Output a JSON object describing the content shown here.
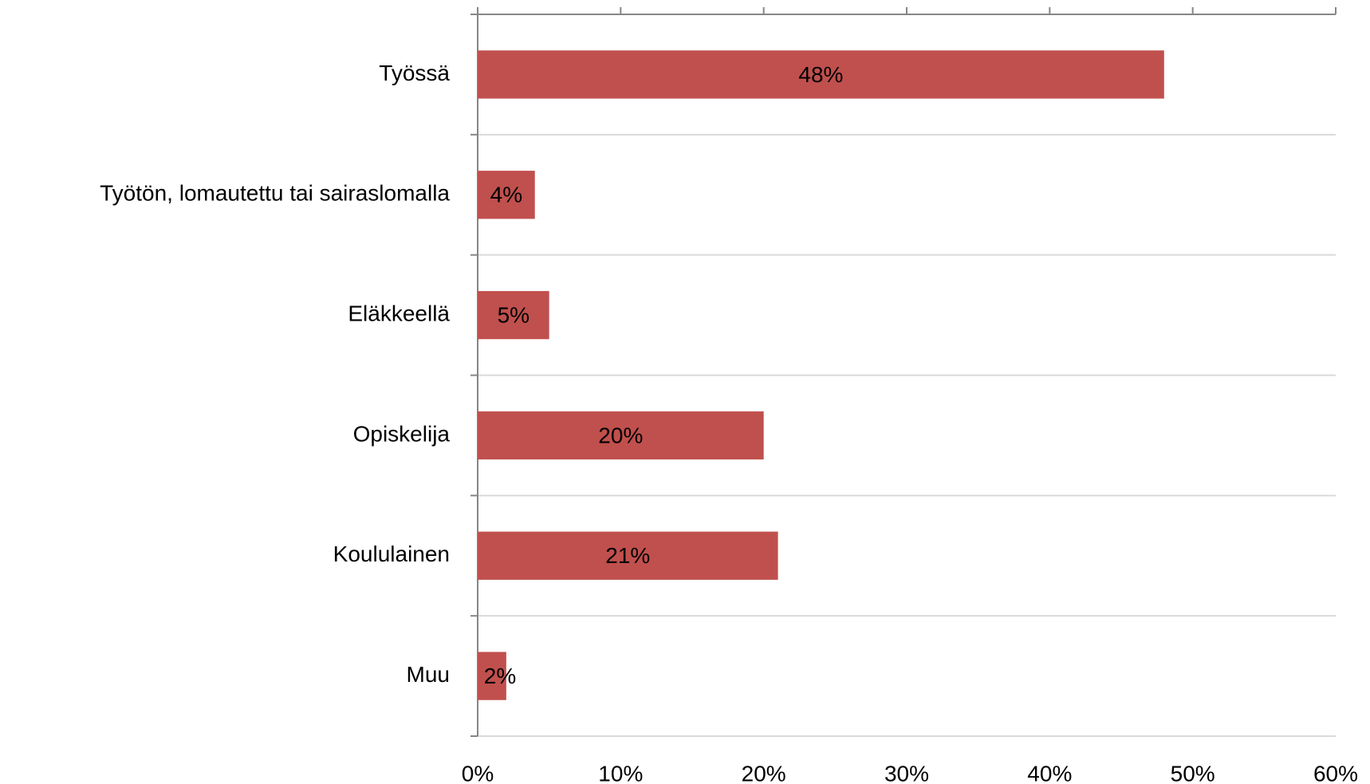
{
  "chart_data": {
    "type": "bar",
    "orientation": "horizontal",
    "categories": [
      "Työssä",
      "Työtön, lomautettu tai sairaslomalla",
      "Eläkkeellä",
      "Opiskelija",
      "Koululainen",
      "Muu"
    ],
    "values": [
      48,
      4,
      5,
      20,
      21,
      2
    ],
    "value_labels": [
      "48%",
      "4%",
      "5%",
      "20%",
      "21%",
      "2%"
    ],
    "color": "#c0504d",
    "xlim": [
      0,
      60
    ],
    "xticks": [
      {
        "value": 0,
        "label": "0%"
      },
      {
        "value": 10,
        "label": "10%"
      },
      {
        "value": 20,
        "label": "20%"
      },
      {
        "value": 30,
        "label": "30%"
      },
      {
        "value": 40,
        "label": "40%"
      },
      {
        "value": 50,
        "label": "50%"
      },
      {
        "value": 60,
        "label": "60%"
      }
    ],
    "grid": true
  }
}
